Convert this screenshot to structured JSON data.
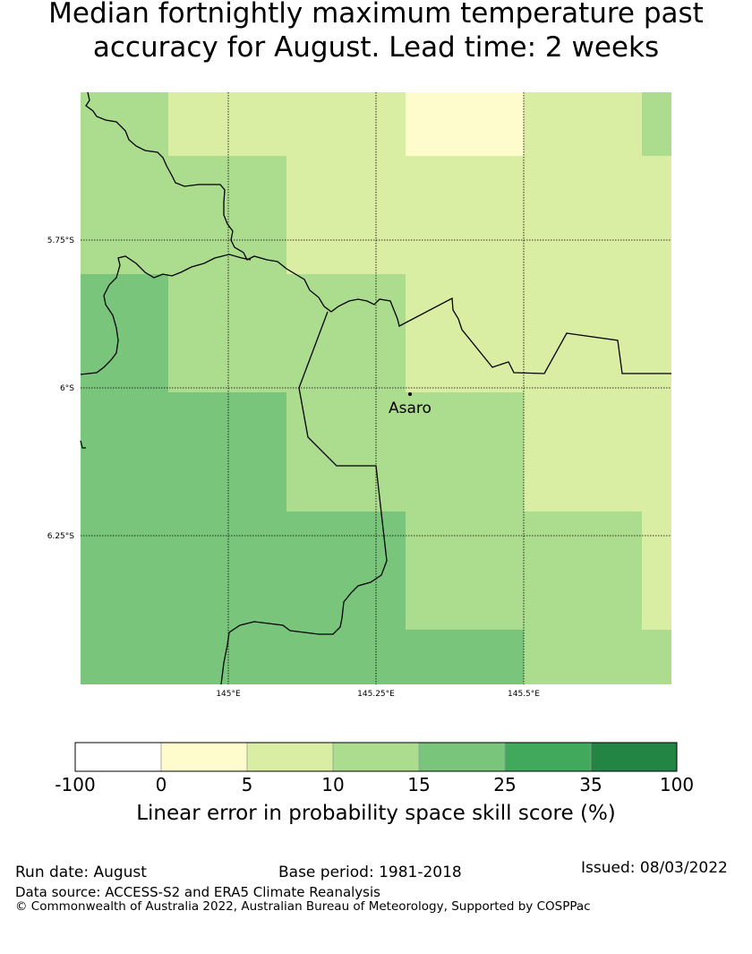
{
  "title_line1": "Median fortnightly maximum temperature past",
  "title_line2": "accuracy for August. Lead time: 2 weeks",
  "map": {
    "lat_labels": [
      "5.75°S",
      "6°S",
      "6.25°S"
    ],
    "lon_labels": [
      "145°E",
      "145.25°E",
      "145.5°E"
    ],
    "place_name": "Asaro",
    "category_colors": {
      "0-5": "#fefccc",
      "5-10": "#d9eea2",
      "10-15": "#acdc8e",
      "15-25": "#78c57b",
      "25-35": "#40a95c",
      "35-100": "#238543"
    }
  },
  "colorbar": {
    "ticks": [
      "-100",
      "0",
      "5",
      "10",
      "15",
      "25",
      "35",
      "100"
    ],
    "colors": [
      "#ffffff",
      "#fefccc",
      "#d9eea2",
      "#acdc8e",
      "#78c57b",
      "#40a95c",
      "#238543"
    ],
    "label": "Linear error in probability space skill score (%)"
  },
  "footer": {
    "run_date": "Run date: August",
    "base_period": "Base period: 1981-2018",
    "issued": "Issued: 08/03/2022",
    "data_source": "Data source: ACCESS-S2 and ERA5 Climate Reanalysis",
    "copyright": "© Commonwealth of Australia 2022, Australian Bureau of Meteorology, Supported by COSPPac"
  }
}
